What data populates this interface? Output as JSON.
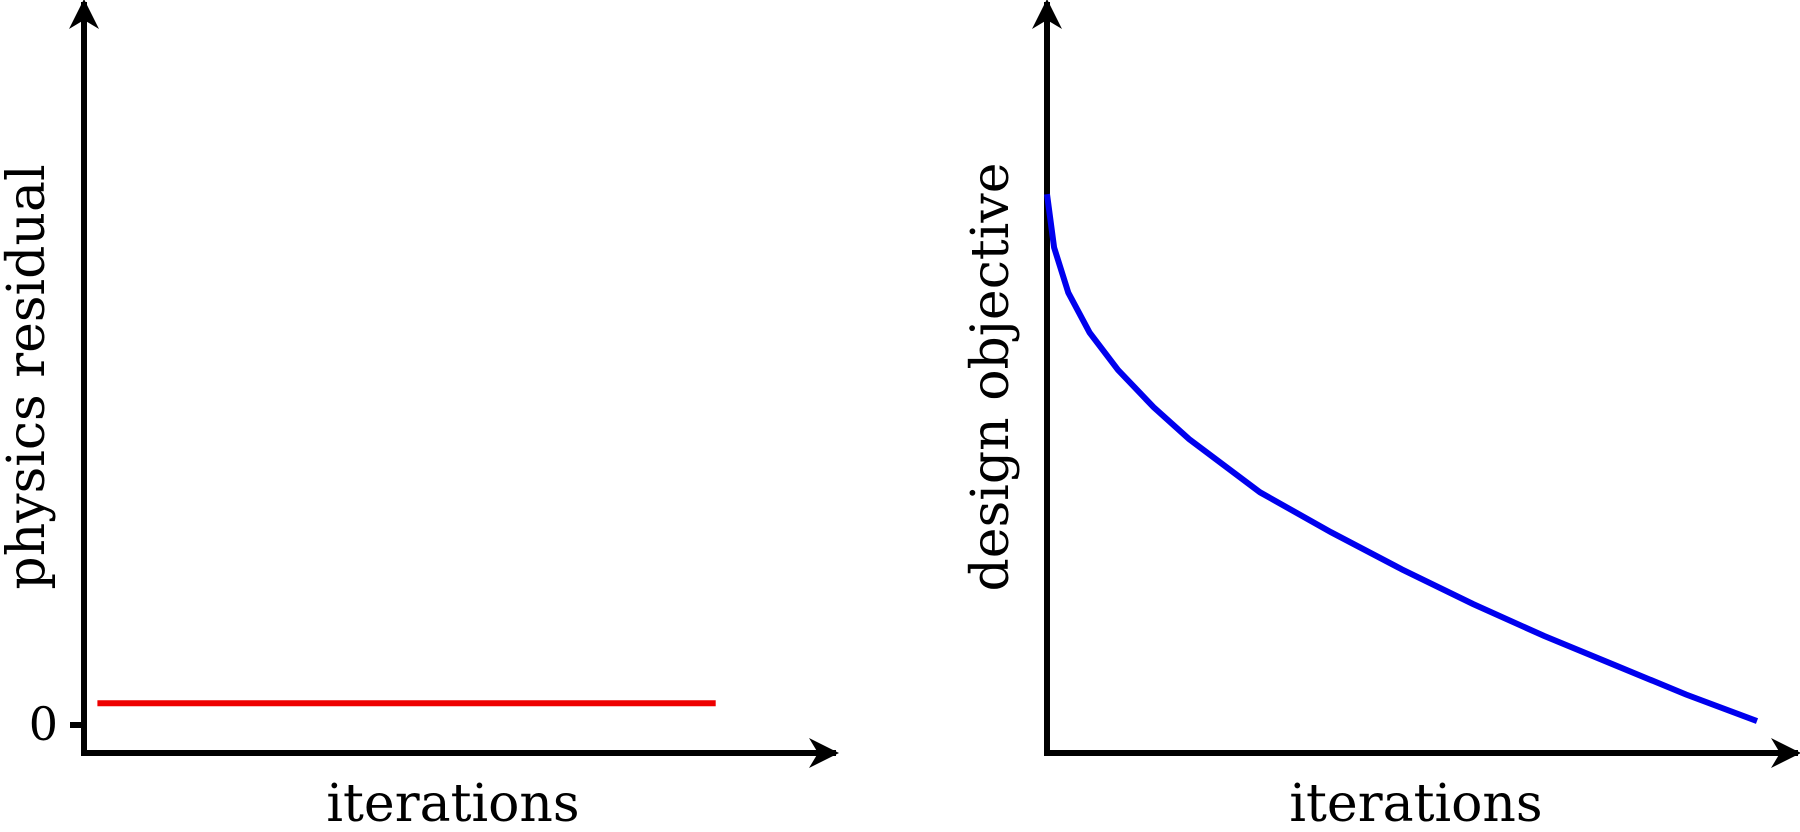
{
  "chart_data": [
    {
      "type": "line",
      "xlabel": "iterations",
      "ylabel": "physics residual",
      "y_ticks": [
        "0"
      ],
      "series": [
        {
          "color": "#ee0000",
          "x": [
            0.02,
            0.94
          ],
          "y": [
            0.1,
            0.1
          ]
        }
      ],
      "xlim": [
        0,
        1
      ],
      "ylim": [
        0,
        1.4
      ],
      "grid": false
    },
    {
      "type": "line",
      "xlabel": "iterations",
      "ylabel": "design objective",
      "series": [
        {
          "color": "#0000ee",
          "x": [
            0,
            0.01,
            0.03,
            0.06,
            0.1,
            0.15,
            0.2,
            0.3,
            0.4,
            0.5,
            0.6,
            0.7,
            0.8,
            0.9,
            1.0
          ],
          "y": [
            1.05,
            0.95,
            0.865,
            0.79,
            0.72,
            0.65,
            0.59,
            0.49,
            0.415,
            0.345,
            0.28,
            0.22,
            0.165,
            0.11,
            0.06
          ]
        }
      ],
      "xlim": [
        0,
        1
      ],
      "ylim": [
        0,
        1.4
      ],
      "grid": false
    }
  ]
}
